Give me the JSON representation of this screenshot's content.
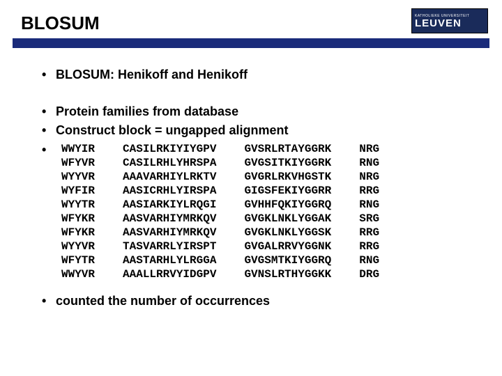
{
  "title": "BLOSUM",
  "logo": {
    "top": "KATHOLIEKE UNIVERSITEIT",
    "main": "LEUVEN"
  },
  "colors": {
    "rule": "#1a2b7a",
    "logo_bg": "#1a2b5a",
    "text": "#000000",
    "bg": "#ffffff"
  },
  "bullets": {
    "b1": "BLOSUM: Henikoff and Henikoff",
    "b2": "Protein families from database",
    "b3": "Construct block = ungapped alignment",
    "b4": "counted the number of occurrences"
  },
  "sequences": {
    "col1": [
      "WWYIR",
      "WFYVR",
      "WYYVR",
      "WYFIR",
      "WYYTR",
      "WFYKR",
      "WFYKR",
      "WYYVR",
      "WFYTR",
      "WWYVR"
    ],
    "col2": [
      "CASILRKIYIYGPV",
      "CASILRHLYHRSPA",
      "AAAVARHIYLRKTV",
      "AASICRHLYIRSPA",
      "AASIARKIYLRQGI",
      "AASVARHIYMRKQV",
      "AASVARHIYMRKQV",
      "TASVARRLYIRSPT",
      "AASTARHLYLRGGA",
      "AAALLRRVYIDGPV"
    ],
    "col3": [
      "GVSRLRTAYGGRK",
      "GVGSITKIYGGRK",
      "GVGRLRKVHGSTK",
      "GIGSFEKIYGGRR",
      "GVHHFQKIYGGRQ",
      "GVGKLNKLYGGAK",
      "GVGKLNKLYGGSK",
      "GVGALRRVYGGNK",
      "GVGSMTKIYGGRQ",
      "GVNSLRTHYGGKK"
    ],
    "col4": [
      "NRG",
      "RNG",
      "NRG",
      "RRG",
      "RNG",
      "SRG",
      "RRG",
      "RRG",
      "RNG",
      "DRG"
    ]
  }
}
